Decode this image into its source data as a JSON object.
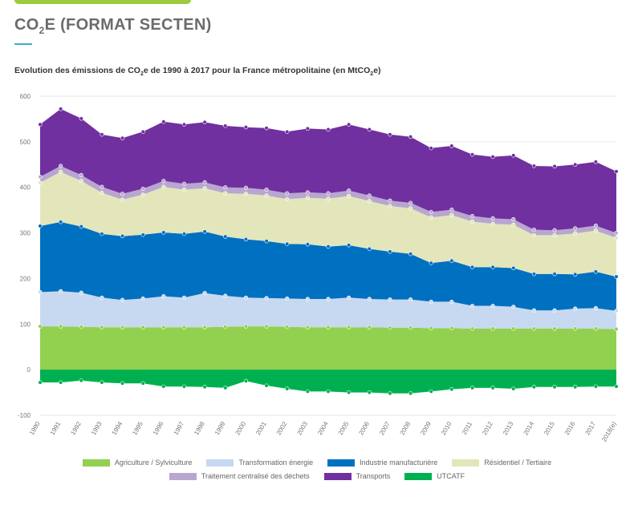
{
  "header": {
    "title_pre": "CO",
    "title_sub": "2",
    "title_post": "E (FORMAT SECTEN)"
  },
  "subtitle": {
    "p1": "Evolution des émissions de CO",
    "s1": "2",
    "p2": "e de 1990 à 2017 pour la France métropolitaine (en MtCO",
    "s2": "2",
    "p3": "e)"
  },
  "chart_data": {
    "type": "area",
    "stacked": true,
    "categories": [
      "1990",
      "1991",
      "1992",
      "1993",
      "1994",
      "1995",
      "1996",
      "1997",
      "1998",
      "1999",
      "2000",
      "2001",
      "2002",
      "2003",
      "2004",
      "2005",
      "2006",
      "2007",
      "2008",
      "2009",
      "2010",
      "2011",
      "2012",
      "2013",
      "2014",
      "2015",
      "2016",
      "2017",
      "2018(e)"
    ],
    "ylim": [
      -100,
      600
    ],
    "yticks": [
      -100,
      0,
      100,
      200,
      300,
      400,
      500,
      600
    ],
    "grid": true,
    "legend_position": "bottom",
    "series": [
      {
        "name": "Agriculture / Sylviculture",
        "color": "#92d050",
        "values": [
          95,
          95,
          94,
          93,
          93,
          93,
          93,
          93,
          93,
          94,
          95,
          95,
          94,
          93,
          93,
          93,
          93,
          92,
          92,
          91,
          91,
          90,
          90,
          90,
          90,
          90,
          90,
          90,
          89
        ]
      },
      {
        "name": "Transformation énergie",
        "color": "#c6d9f0",
        "values": [
          75,
          77,
          75,
          65,
          60,
          63,
          68,
          65,
          75,
          68,
          63,
          62,
          62,
          62,
          62,
          65,
          62,
          62,
          62,
          58,
          58,
          50,
          50,
          48,
          40,
          40,
          44,
          45,
          40
        ]
      },
      {
        "name": "Industrie manufacturière",
        "color": "#0070c0",
        "values": [
          145,
          152,
          145,
          140,
          140,
          140,
          140,
          140,
          135,
          130,
          128,
          125,
          120,
          120,
          115,
          115,
          110,
          105,
          100,
          85,
          90,
          85,
          85,
          85,
          80,
          80,
          75,
          80,
          75
        ]
      },
      {
        "name": "Résidentiel / Tertiaire",
        "color": "#e3e6bb",
        "values": [
          95,
          110,
          100,
          90,
          80,
          88,
          100,
          97,
          95,
          95,
          100,
          100,
          98,
          102,
          105,
          108,
          105,
          100,
          100,
          100,
          100,
          100,
          95,
          95,
          85,
          85,
          90,
          90,
          85
        ]
      },
      {
        "name": "Traitement centralisé des déchets",
        "color": "#b8a6d0",
        "values": [
          13,
          13,
          13,
          13,
          13,
          13,
          13,
          13,
          13,
          13,
          13,
          13,
          13,
          12,
          12,
          12,
          12,
          12,
          12,
          12,
          12,
          12,
          12,
          12,
          12,
          11,
          11,
          11,
          11
        ]
      },
      {
        "name": "Transports",
        "color": "#7030a0",
        "values": [
          115,
          125,
          124,
          115,
          122,
          125,
          130,
          130,
          132,
          135,
          133,
          135,
          135,
          140,
          140,
          145,
          145,
          145,
          145,
          140,
          140,
          135,
          135,
          140,
          140,
          140,
          140,
          140,
          135
        ]
      },
      {
        "name": "UTCATF",
        "color": "#00b050",
        "values": [
          -28,
          -28,
          -24,
          -28,
          -30,
          -30,
          -37,
          -37,
          -38,
          -40,
          -25,
          -35,
          -42,
          -48,
          -48,
          -50,
          -50,
          -52,
          -52,
          -48,
          -43,
          -40,
          -40,
          -42,
          -38,
          -38,
          -38,
          -37,
          -37
        ]
      }
    ]
  }
}
